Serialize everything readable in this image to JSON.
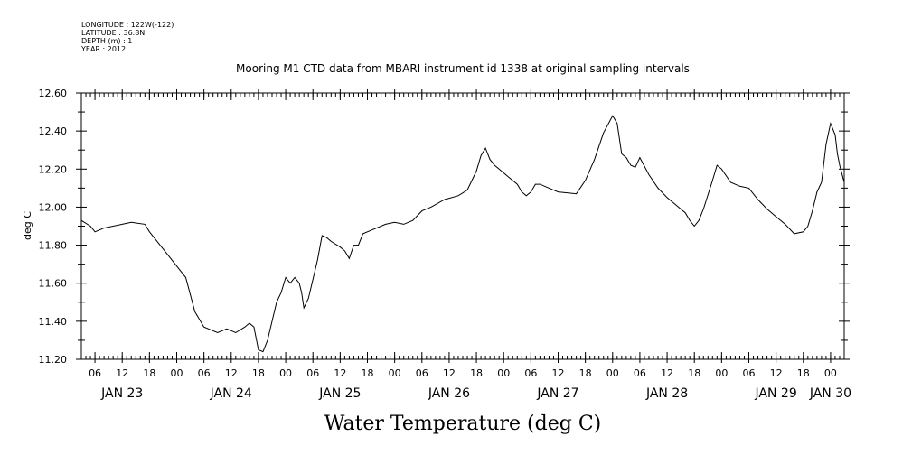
{
  "header": {
    "longitude": "LONGITUDE : 122W(-122)",
    "latitude": "LATITUDE : 36.8N",
    "depth": "DEPTH (m) : 1",
    "year": "YEAR : 2012"
  },
  "chart_data": {
    "type": "line",
    "title": "Mooring M1 CTD data from MBARI instrument id 1338 at original sampling intervals",
    "xlabel": "Water Temperature (deg C)",
    "ylabel": "deg C",
    "x_unit": "hours from JAN 23 00:00",
    "xlim": [
      3,
      171
    ],
    "ylim": [
      11.2,
      12.6
    ],
    "y_major_ticks": [
      11.2,
      11.4,
      11.6,
      11.8,
      12.0,
      12.2,
      12.4,
      12.6
    ],
    "y_tick_labels": [
      "11.20",
      "11.40",
      "11.60",
      "11.80",
      "12.00",
      "12.20",
      "12.40",
      "12.60"
    ],
    "x_hour_ticks": [
      {
        "x": 6,
        "label": "06"
      },
      {
        "x": 12,
        "label": "12"
      },
      {
        "x": 18,
        "label": "18"
      },
      {
        "x": 24,
        "label": "00"
      },
      {
        "x": 30,
        "label": "06"
      },
      {
        "x": 36,
        "label": "12"
      },
      {
        "x": 42,
        "label": "18"
      },
      {
        "x": 48,
        "label": "00"
      },
      {
        "x": 54,
        "label": "06"
      },
      {
        "x": 60,
        "label": "12"
      },
      {
        "x": 66,
        "label": "18"
      },
      {
        "x": 72,
        "label": "00"
      },
      {
        "x": 78,
        "label": "06"
      },
      {
        "x": 84,
        "label": "12"
      },
      {
        "x": 90,
        "label": "18"
      },
      {
        "x": 96,
        "label": "00"
      },
      {
        "x": 102,
        "label": "06"
      },
      {
        "x": 108,
        "label": "12"
      },
      {
        "x": 114,
        "label": "18"
      },
      {
        "x": 120,
        "label": "00"
      },
      {
        "x": 126,
        "label": "06"
      },
      {
        "x": 132,
        "label": "12"
      },
      {
        "x": 138,
        "label": "18"
      },
      {
        "x": 144,
        "label": "00"
      },
      {
        "x": 150,
        "label": "06"
      },
      {
        "x": 156,
        "label": "12"
      },
      {
        "x": 162,
        "label": "18"
      },
      {
        "x": 168,
        "label": "00"
      }
    ],
    "x_day_labels": [
      {
        "x": 12,
        "label": "JAN 23"
      },
      {
        "x": 36,
        "label": "JAN 24"
      },
      {
        "x": 60,
        "label": "JAN 25"
      },
      {
        "x": 84,
        "label": "JAN 26"
      },
      {
        "x": 108,
        "label": "JAN 27"
      },
      {
        "x": 132,
        "label": "JAN 28"
      },
      {
        "x": 156,
        "label": "JAN 29"
      },
      {
        "x": 168,
        "label": "JAN 30"
      }
    ],
    "grid": false,
    "series": [
      {
        "points": [
          [
            3,
            11.93
          ],
          [
            5,
            11.9
          ],
          [
            6,
            11.87
          ],
          [
            8,
            11.89
          ],
          [
            12,
            11.91
          ],
          [
            14,
            11.92
          ],
          [
            17,
            11.91
          ],
          [
            18,
            11.87
          ],
          [
            22,
            11.75
          ],
          [
            26,
            11.63
          ],
          [
            28,
            11.45
          ],
          [
            30,
            11.37
          ],
          [
            33,
            11.34
          ],
          [
            35,
            11.36
          ],
          [
            37,
            11.34
          ],
          [
            39,
            11.37
          ],
          [
            40,
            11.39
          ],
          [
            41,
            11.37
          ],
          [
            42,
            11.25
          ],
          [
            43,
            11.24
          ],
          [
            44,
            11.3
          ],
          [
            45,
            11.4
          ],
          [
            46,
            11.5
          ],
          [
            47,
            11.55
          ],
          [
            48,
            11.63
          ],
          [
            49,
            11.6
          ],
          [
            50,
            11.63
          ],
          [
            51,
            11.6
          ],
          [
            51.5,
            11.55
          ],
          [
            52,
            11.47
          ],
          [
            53,
            11.52
          ],
          [
            54,
            11.62
          ],
          [
            55,
            11.72
          ],
          [
            56,
            11.85
          ],
          [
            57,
            11.84
          ],
          [
            58,
            11.82
          ],
          [
            60,
            11.79
          ],
          [
            61,
            11.77
          ],
          [
            62,
            11.73
          ],
          [
            63,
            11.8
          ],
          [
            64,
            11.8
          ],
          [
            65,
            11.86
          ],
          [
            67,
            11.88
          ],
          [
            70,
            11.91
          ],
          [
            72,
            11.92
          ],
          [
            74,
            11.91
          ],
          [
            76,
            11.93
          ],
          [
            78,
            11.98
          ],
          [
            80,
            12.0
          ],
          [
            83,
            12.04
          ],
          [
            86,
            12.06
          ],
          [
            88,
            12.09
          ],
          [
            90,
            12.19
          ],
          [
            91,
            12.27
          ],
          [
            92,
            12.31
          ],
          [
            93,
            12.25
          ],
          [
            94,
            12.22
          ],
          [
            95,
            12.2
          ],
          [
            97,
            12.16
          ],
          [
            99,
            12.12
          ],
          [
            100,
            12.08
          ],
          [
            101,
            12.06
          ],
          [
            102,
            12.08
          ],
          [
            103,
            12.12
          ],
          [
            104,
            12.12
          ],
          [
            106,
            12.1
          ],
          [
            108,
            12.08
          ],
          [
            112,
            12.07
          ],
          [
            114,
            12.14
          ],
          [
            116,
            12.25
          ],
          [
            118,
            12.39
          ],
          [
            120,
            12.48
          ],
          [
            121,
            12.44
          ],
          [
            122,
            12.28
          ],
          [
            123,
            12.26
          ],
          [
            124,
            12.22
          ],
          [
            125,
            12.21
          ],
          [
            126,
            12.26
          ],
          [
            128,
            12.17
          ],
          [
            130,
            12.1
          ],
          [
            132,
            12.05
          ],
          [
            134,
            12.01
          ],
          [
            136,
            11.97
          ],
          [
            137,
            11.93
          ],
          [
            138,
            11.9
          ],
          [
            139,
            11.93
          ],
          [
            140,
            11.99
          ],
          [
            142,
            12.14
          ],
          [
            143,
            12.22
          ],
          [
            144,
            12.2
          ],
          [
            146,
            12.13
          ],
          [
            148,
            12.11
          ],
          [
            150,
            12.1
          ],
          [
            152,
            12.04
          ],
          [
            154,
            11.99
          ],
          [
            156,
            11.95
          ],
          [
            158,
            11.91
          ],
          [
            160,
            11.86
          ],
          [
            162,
            11.87
          ],
          [
            163,
            11.9
          ],
          [
            164,
            11.98
          ],
          [
            165,
            12.08
          ],
          [
            166,
            12.13
          ],
          [
            167,
            12.33
          ],
          [
            168,
            12.44
          ],
          [
            169,
            12.38
          ],
          [
            169.5,
            12.28
          ],
          [
            170,
            12.22
          ],
          [
            171,
            12.13
          ]
        ]
      }
    ]
  }
}
